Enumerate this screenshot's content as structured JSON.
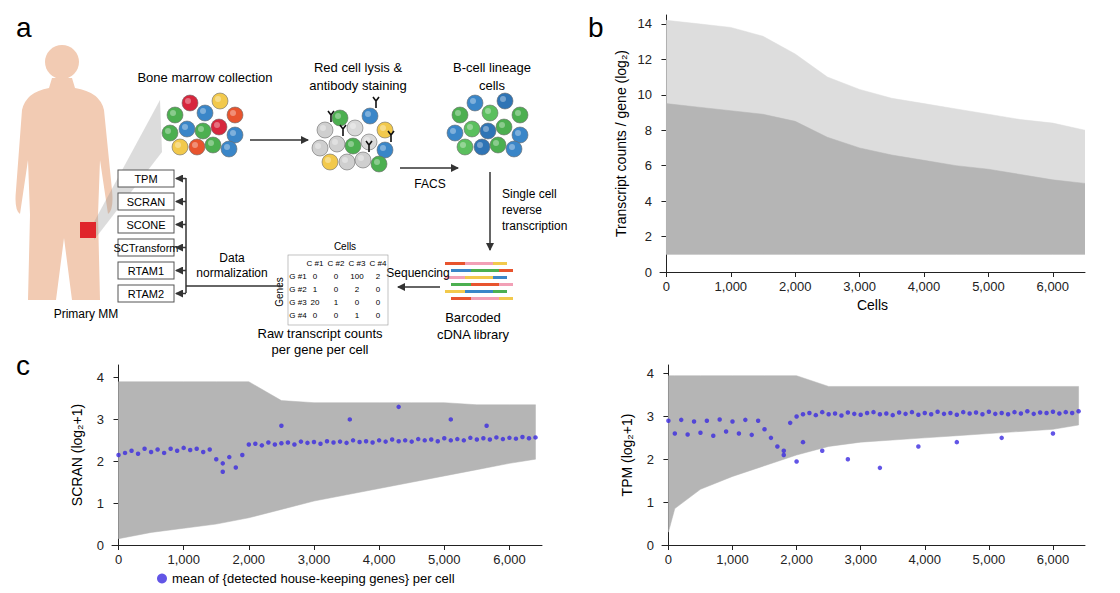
{
  "diagram": {
    "label": "a",
    "patient": "Primary MM",
    "stages": {
      "collection": "Bone marrow collection",
      "staining": "Red cell lysis & antibody staining",
      "sorted": "B-cell lineage cells",
      "library": "Barcoded cDNA library",
      "counts": "Raw transcript counts per gene per cell"
    },
    "arrows": {
      "facs": "FACS",
      "rt": "Single cell reverse transcription",
      "seq": "Sequencing",
      "norm": "Data normalization"
    },
    "matrix": {
      "title": "Cells",
      "row_title": "Genes",
      "columns": [
        "C #1",
        "C #2",
        "C #3",
        "C #4"
      ],
      "rows": [
        {
          "label": "G #1",
          "values": [
            0,
            0,
            100,
            2
          ]
        },
        {
          "label": "G #2",
          "values": [
            1,
            0,
            2,
            0
          ]
        },
        {
          "label": "G #3",
          "values": [
            20,
            1,
            0,
            0
          ]
        },
        {
          "label": "G #4",
          "values": [
            0,
            0,
            1,
            0
          ]
        }
      ]
    },
    "methods": [
      "TPM",
      "SCRAN",
      "SCONE",
      "SCTransform",
      "RTAM1",
      "RTAM2"
    ]
  },
  "chart_data": [
    {
      "type": "scatter",
      "label": "b",
      "xlabel": "Cells",
      "ylabel": "Transcript counts / gene (log₂)",
      "xlim": [
        -100,
        6500
      ],
      "xticks": [
        0,
        {
          "value": 1000,
          "label": "1,000"
        },
        {
          "value": 2000,
          "label": "2,000"
        },
        {
          "value": 3000,
          "label": "3,000"
        },
        {
          "value": 4000,
          "label": "4,000"
        },
        {
          "value": 5000,
          "label": "5,000"
        },
        {
          "value": 6000,
          "label": "6,000"
        }
      ],
      "ylim": [
        0,
        14.5
      ],
      "yticks": [
        0,
        2,
        4,
        6,
        8,
        10,
        12,
        14
      ],
      "grid": false,
      "series": [
        {
          "type": "band",
          "color": "#dddddd",
          "x": [
            0,
            500,
            1000,
            1500,
            2000,
            2500,
            3000,
            3500,
            4000,
            4500,
            5000,
            5500,
            6000,
            6500
          ],
          "lower": [
            1,
            1,
            1,
            1,
            1,
            1,
            1,
            1,
            1,
            1,
            1,
            1,
            1,
            1
          ],
          "upper": [
            14.2,
            14.0,
            13.8,
            13.3,
            12.3,
            11.0,
            10.3,
            9.8,
            9.5,
            9.2,
            8.9,
            8.6,
            8.4,
            8.0
          ]
        },
        {
          "type": "band",
          "color": "#b5b5b5",
          "x": [
            0,
            500,
            1000,
            1500,
            2000,
            2500,
            3000,
            3500,
            4000,
            4500,
            5000,
            5500,
            6000,
            6500
          ],
          "lower": [
            1,
            1,
            1,
            1,
            1,
            1,
            1,
            1,
            1,
            1,
            1,
            1,
            1,
            1
          ],
          "upper": [
            9.5,
            9.3,
            9.1,
            8.9,
            8.5,
            7.6,
            7.0,
            6.6,
            6.3,
            6.0,
            5.8,
            5.5,
            5.2,
            5.0
          ]
        }
      ]
    },
    {
      "type": "scatter",
      "label": "c",
      "ylabel": "SCRAN (log₂+1)",
      "xlim": [
        -100,
        6500
      ],
      "xticks": [
        0,
        {
          "value": 1000,
          "label": "1,000"
        },
        {
          "value": 2000,
          "label": "2,000"
        },
        {
          "value": 3000,
          "label": "3,000"
        },
        {
          "value": 4000,
          "label": "4,000"
        },
        {
          "value": 5000,
          "label": "5,000"
        },
        {
          "value": 6000,
          "label": "6,000"
        }
      ],
      "ylim": [
        0,
        4.3
      ],
      "yticks": [
        0,
        1,
        2,
        3,
        4
      ],
      "grid": false,
      "legend": "bottom",
      "series": [
        {
          "type": "band",
          "color": "#b5b5b5",
          "x": [
            0,
            500,
            1000,
            1500,
            2000,
            2500,
            3000,
            3500,
            4000,
            4500,
            5000,
            5500,
            6000,
            6400
          ],
          "lower": [
            0.15,
            0.3,
            0.4,
            0.5,
            0.65,
            0.85,
            1.05,
            1.2,
            1.35,
            1.5,
            1.65,
            1.8,
            1.95,
            2.05
          ],
          "upper": [
            3.9,
            3.9,
            3.9,
            3.9,
            3.9,
            3.45,
            3.4,
            3.4,
            3.4,
            3.4,
            3.4,
            3.35,
            3.35,
            3.35
          ]
        },
        {
          "type": "scatter",
          "name": "mean of {detected house-keeping genes} per cell",
          "color": "#3b2be0",
          "marker": "circle",
          "x": [
            0,
            100,
            200,
            300,
            400,
            500,
            600,
            700,
            800,
            900,
            1000,
            1100,
            1200,
            1300,
            1400,
            1500,
            1600,
            1700,
            1800,
            1900,
            2000,
            2100,
            2200,
            2300,
            2400,
            2500,
            2600,
            2700,
            2800,
            2900,
            3000,
            3100,
            3200,
            3300,
            3400,
            3500,
            3600,
            3700,
            3800,
            3900,
            4000,
            4100,
            4200,
            4300,
            4400,
            4500,
            4600,
            4700,
            4800,
            4900,
            5000,
            5100,
            5200,
            5300,
            5400,
            5500,
            5600,
            5700,
            5800,
            5900,
            6000,
            6100,
            6200,
            6300,
            6400,
            1600,
            2500,
            3550,
            4300,
            5100,
            5650
          ],
          "values": [
            2.15,
            2.2,
            2.25,
            2.18,
            2.3,
            2.22,
            2.28,
            2.2,
            2.3,
            2.25,
            2.32,
            2.27,
            2.3,
            2.22,
            2.28,
            2.05,
            1.95,
            2.1,
            1.85,
            2.15,
            2.4,
            2.42,
            2.38,
            2.45,
            2.4,
            2.43,
            2.45,
            2.4,
            2.47,
            2.44,
            2.46,
            2.42,
            2.48,
            2.45,
            2.47,
            2.44,
            2.5,
            2.46,
            2.48,
            2.45,
            2.5,
            2.47,
            2.52,
            2.48,
            2.5,
            2.47,
            2.53,
            2.5,
            2.52,
            2.48,
            2.55,
            2.5,
            2.53,
            2.5,
            2.56,
            2.52,
            2.55,
            2.52,
            2.57,
            2.53,
            2.56,
            2.54,
            2.58,
            2.55,
            2.57,
            1.75,
            2.85,
            3.0,
            3.3,
            3.0,
            2.85
          ]
        }
      ]
    },
    {
      "type": "scatter",
      "ylabel": "TPM (log₂+1)",
      "xlim": [
        -100,
        6500
      ],
      "xticks": [
        0,
        {
          "value": 1000,
          "label": "1,000"
        },
        {
          "value": 2000,
          "label": "2,000"
        },
        {
          "value": 3000,
          "label": "3,000"
        },
        {
          "value": 4000,
          "label": "4,000"
        },
        {
          "value": 5000,
          "label": "5,000"
        },
        {
          "value": 6000,
          "label": "6,000"
        }
      ],
      "ylim": [
        0,
        4.2
      ],
      "yticks": [
        0,
        1,
        2,
        3,
        4
      ],
      "grid": false,
      "series": [
        {
          "type": "band",
          "color": "#b5b5b5",
          "x": [
            0,
            100,
            500,
            1000,
            1500,
            2000,
            2500,
            3000,
            3500,
            4000,
            4500,
            5000,
            5500,
            6000,
            6400
          ],
          "lower": [
            0.3,
            0.85,
            1.3,
            1.6,
            1.85,
            2.1,
            2.3,
            2.4,
            2.45,
            2.5,
            2.55,
            2.6,
            2.65,
            2.7,
            2.8
          ],
          "upper": [
            3.95,
            3.95,
            3.95,
            3.95,
            3.95,
            3.95,
            3.7,
            3.7,
            3.7,
            3.7,
            3.7,
            3.7,
            3.7,
            3.7,
            3.7
          ]
        },
        {
          "type": "scatter",
          "name": "mean of {detected house-keeping genes} per cell",
          "color": "#3b2be0",
          "marker": "circle",
          "x": [
            0,
            100,
            200,
            300,
            400,
            500,
            600,
            700,
            800,
            900,
            1000,
            1100,
            1200,
            1300,
            1400,
            1500,
            1600,
            1700,
            1800,
            1900,
            2000,
            2100,
            2200,
            2300,
            2400,
            2500,
            2600,
            2700,
            2800,
            2900,
            3000,
            3100,
            3200,
            3300,
            3400,
            3500,
            3600,
            3700,
            3800,
            3900,
            4000,
            4100,
            4200,
            4300,
            4400,
            4500,
            4600,
            4700,
            4800,
            4900,
            5000,
            5100,
            5200,
            5300,
            5400,
            5500,
            5600,
            5700,
            5800,
            5900,
            6000,
            6100,
            6200,
            6300,
            6400,
            1800,
            2000,
            2100,
            2400,
            2800,
            3300,
            3900,
            4500,
            5200,
            6000
          ],
          "values": [
            2.9,
            2.6,
            2.92,
            2.58,
            2.88,
            2.62,
            2.9,
            2.55,
            2.93,
            2.65,
            2.88,
            2.6,
            2.92,
            2.57,
            2.9,
            2.7,
            2.5,
            2.3,
            2.2,
            2.85,
            3.0,
            3.05,
            3.08,
            3.03,
            3.1,
            3.05,
            3.07,
            3.02,
            3.09,
            3.06,
            3.04,
            3.08,
            3.1,
            3.05,
            3.07,
            3.03,
            3.09,
            3.06,
            3.1,
            3.04,
            3.08,
            3.05,
            3.11,
            3.06,
            3.08,
            3.04,
            3.1,
            3.07,
            3.09,
            3.05,
            3.11,
            3.06,
            3.08,
            3.05,
            3.1,
            3.07,
            3.12,
            3.06,
            3.09,
            3.08,
            3.11,
            3.07,
            3.1,
            3.08,
            3.12,
            2.1,
            1.95,
            2.4,
            2.2,
            2.0,
            1.8,
            2.3,
            2.4,
            2.5,
            2.6
          ]
        }
      ]
    }
  ]
}
